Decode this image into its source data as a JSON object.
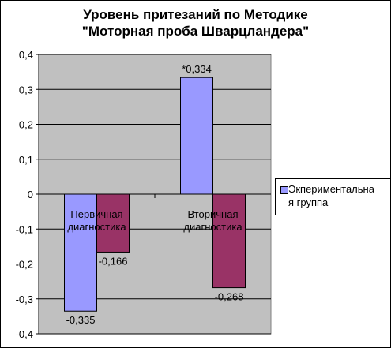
{
  "chart_data": {
    "type": "bar",
    "title": [
      "Уровень притезаний по Методике",
      "\"Моторная проба Шварцландера\""
    ],
    "categories": [
      "Первичная диагностика",
      "Вторичная диагностика"
    ],
    "series": [
      {
        "name": "Экпериментальная группа",
        "values": [
          -0.335,
          0.334
        ],
        "color": "#9999ff",
        "labels": [
          "-0,335",
          "*0,334"
        ]
      },
      {
        "values": [
          -0.166,
          -0.268
        ],
        "color": "#993366",
        "labels": [
          "-0,166",
          "-0,268"
        ]
      }
    ],
    "ylim": [
      -0.4,
      0.4
    ],
    "yticks": [
      "0,4",
      "0,3",
      "0,2",
      "0,1",
      "0",
      "-0,1",
      "-0,2",
      "-0,3",
      "-0,4"
    ],
    "grid": true,
    "plot_background": "#c0c0c0",
    "legend_position": "right",
    "legend_lines": [
      "Экпериментальна",
      "я группа"
    ]
  }
}
